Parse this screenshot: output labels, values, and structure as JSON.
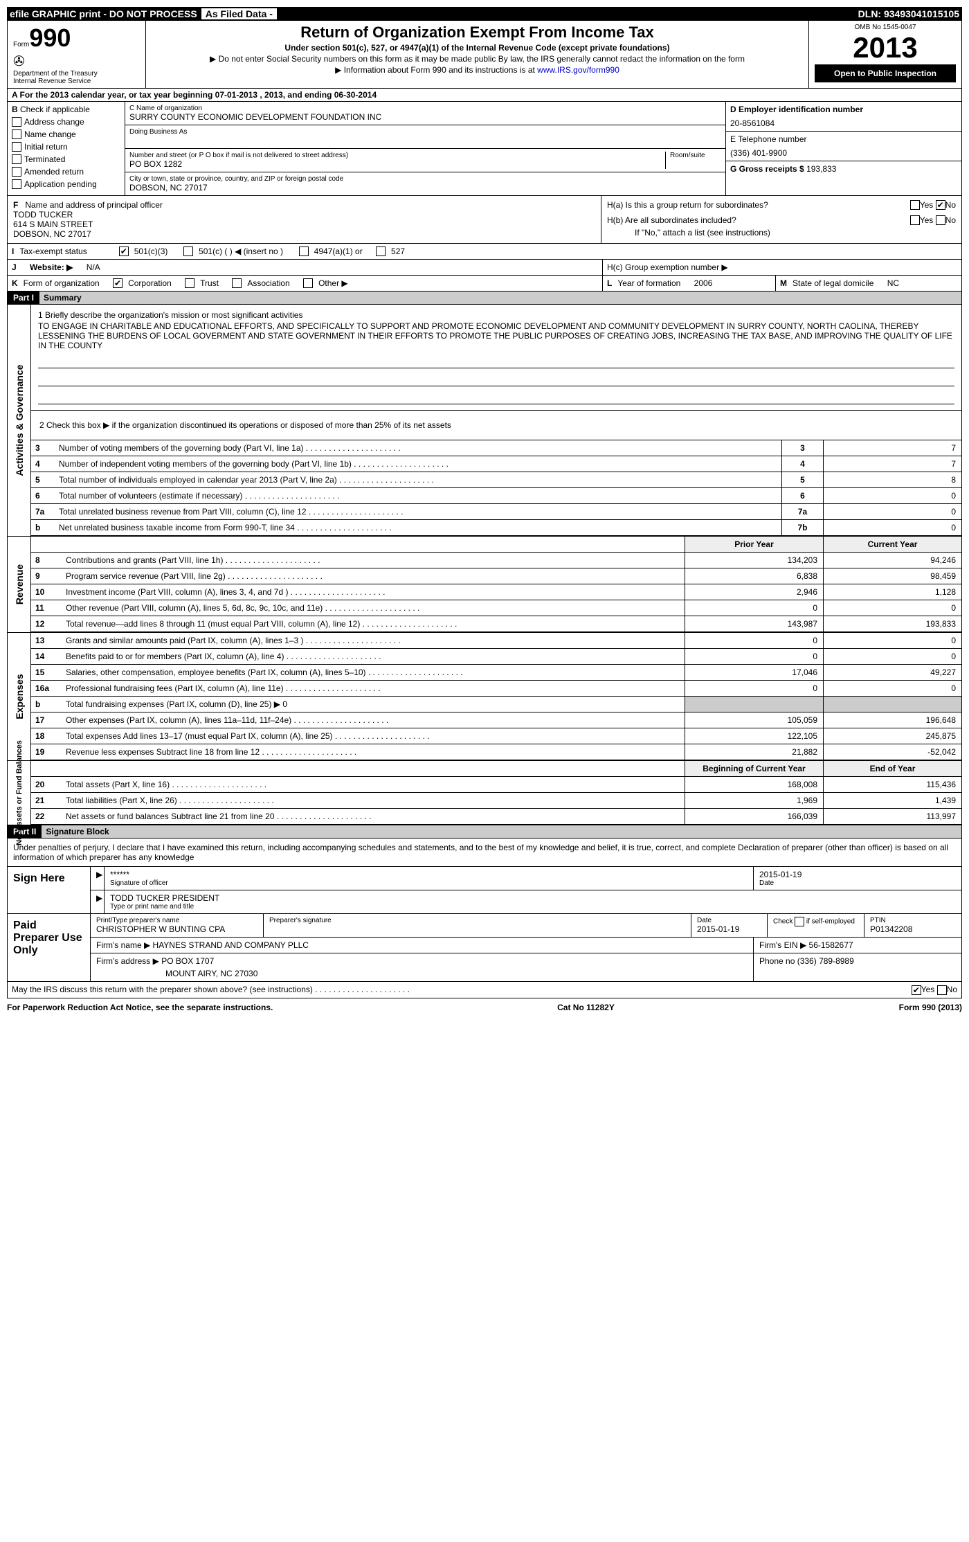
{
  "topbar": {
    "left": "efile GRAPHIC print - DO NOT PROCESS",
    "mid": "As Filed Data -",
    "dln_label": "DLN:",
    "dln": "93493041015105"
  },
  "hdr": {
    "form_label": "Form",
    "form_no": "990",
    "dept": "Department of the Treasury",
    "irs": "Internal Revenue Service",
    "title": "Return of Organization Exempt From Income Tax",
    "sub1": "Under section 501(c), 527, or 4947(a)(1) of the Internal Revenue Code (except private foundations)",
    "sub2": "▶ Do not enter Social Security numbers on this form as it may be made public  By law, the IRS generally cannot redact the information on the form",
    "sub3": "▶ Information about Form 990 and its instructions is at ",
    "link": "www.IRS.gov/form990",
    "omb": "OMB No  1545-0047",
    "year": "2013",
    "open": "Open to Public Inspection"
  },
  "rowA": "A  For the 2013 calendar year, or tax year beginning 07-01-2013    , 2013, and ending 06-30-2014",
  "b": {
    "label": "B",
    "check_if": "Check if applicable",
    "items": [
      "Address change",
      "Name change",
      "Initial return",
      "Terminated",
      "Amended return",
      "Application pending"
    ]
  },
  "c": {
    "name_label": "C Name of organization",
    "name": "SURRY COUNTY ECONOMIC DEVELOPMENT FOUNDATION INC",
    "dba_label": "Doing Business As",
    "addr_label": "Number and street (or P O  box if mail is not delivered to street address)",
    "room": "Room/suite",
    "addr": "PO BOX 1282",
    "city_label": "City or town, state or province, country, and ZIP or foreign postal code",
    "city": "DOBSON, NC  27017"
  },
  "d": {
    "label": "D  Employer identification number",
    "val": "20-8561084"
  },
  "e": {
    "label": "E  Telephone number",
    "val": "(336) 401-9900"
  },
  "g": {
    "label": "G  Gross receipts $",
    "val": "193,833"
  },
  "f": {
    "label": "F",
    "sub": "Name and address of principal officer",
    "name": "TODD TUCKER",
    "l1": "614 S MAIN STREET",
    "l2": "DOBSON, NC  27017"
  },
  "h": {
    "a": "H(a)  Is this a group return for subordinates?",
    "a_yes": "Yes",
    "a_no": "No",
    "b": "H(b)  Are all subordinates included?",
    "b_yes": "Yes",
    "b_no": "No",
    "b_note": "If \"No,\" attach a list  (see instructions)",
    "c": "H(c)   Group exemption number ▶"
  },
  "i": {
    "label": "I",
    "text": "Tax-exempt status",
    "o1": "501(c)(3)",
    "o2": "501(c) (   ) ◀ (insert no )",
    "o3": "4947(a)(1) or",
    "o4": "527"
  },
  "j": {
    "label": "J",
    "text": "Website: ▶",
    "val": "N/A"
  },
  "k": {
    "label": "K",
    "text": "Form of organization",
    "o1": "Corporation",
    "o2": "Trust",
    "o3": "Association",
    "o4": "Other ▶"
  },
  "l": {
    "label": "L",
    "text": "Year of formation",
    "val": "2006"
  },
  "m": {
    "label": "M",
    "text": "State of legal domicile",
    "val": "NC"
  },
  "part1": {
    "label": "Part I",
    "title": "Summary"
  },
  "strip_ag": "Activities & Governance",
  "mission_q": "1    Briefly describe the organization's mission or most significant activities",
  "mission": "TO ENGAGE IN CHARITABLE AND EDUCATIONAL EFFORTS, AND SPECIFICALLY TO SUPPORT AND PROMOTE ECONOMIC DEVELOPMENT AND COMMUNITY DEVELOPMENT IN SURRY COUNTY, NORTH CAOLINA, THEREBY LESSENING THE BURDENS OF LOCAL GOVERMENT AND STATE GOVERNMENT IN THEIR EFFORTS TO PROMOTE THE PUBLIC PURPOSES OF CREATING JOBS, INCREASING THE TAX BASE, AND IMPROVING THE QUALITY OF LIFE IN THE COUNTY",
  "q2": "2    Check this box ▶     if the organization discontinued its operations or disposed of more than 25% of its net assets",
  "ag_rows": [
    {
      "n": "3",
      "t": "Number of voting members of the governing body (Part VI, line 1a)",
      "box": "3",
      "val": "7"
    },
    {
      "n": "4",
      "t": "Number of independent voting members of the governing body (Part VI, line 1b)",
      "box": "4",
      "val": "7"
    },
    {
      "n": "5",
      "t": "Total number of individuals employed in calendar year 2013 (Part V, line 2a)",
      "box": "5",
      "val": "8"
    },
    {
      "n": "6",
      "t": "Total number of volunteers (estimate if necessary)",
      "box": "6",
      "val": "0"
    },
    {
      "n": "7a",
      "t": "Total unrelated business revenue from Part VIII, column (C), line 12",
      "box": "7a",
      "val": "0"
    },
    {
      "n": "b",
      "t": "Net unrelated business taxable income from Form 990-T, line 34",
      "box": "7b",
      "val": "0"
    }
  ],
  "col_hdr": {
    "py": "Prior Year",
    "cy": "Current Year"
  },
  "strip_rev": "Revenue",
  "rev_rows": [
    {
      "n": "8",
      "t": "Contributions and grants (Part VIII, line 1h)",
      "py": "134,203",
      "cy": "94,246"
    },
    {
      "n": "9",
      "t": "Program service revenue (Part VIII, line 2g)",
      "py": "6,838",
      "cy": "98,459"
    },
    {
      "n": "10",
      "t": "Investment income (Part VIII, column (A), lines 3, 4, and 7d )",
      "py": "2,946",
      "cy": "1,128"
    },
    {
      "n": "11",
      "t": "Other revenue (Part VIII, column (A), lines 5, 6d, 8c, 9c, 10c, and 11e)",
      "py": "0",
      "cy": "0"
    },
    {
      "n": "12",
      "t": "Total revenue—add lines 8 through 11 (must equal Part VIII, column (A), line 12)",
      "py": "143,987",
      "cy": "193,833"
    }
  ],
  "strip_exp": "Expenses",
  "exp_rows": [
    {
      "n": "13",
      "t": "Grants and similar amounts paid (Part IX, column (A), lines 1–3 )",
      "py": "0",
      "cy": "0"
    },
    {
      "n": "14",
      "t": "Benefits paid to or for members (Part IX, column (A), line 4)",
      "py": "0",
      "cy": "0"
    },
    {
      "n": "15",
      "t": "Salaries, other compensation, employee benefits (Part IX, column (A), lines 5–10)",
      "py": "17,046",
      "cy": "49,227"
    },
    {
      "n": "16a",
      "t": "Professional fundraising fees (Part IX, column (A), line 11e)",
      "py": "0",
      "cy": "0"
    },
    {
      "n": "b",
      "t": "Total fundraising expenses (Part IX, column (D), line 25) ▶ 0",
      "py": "",
      "cy": ""
    },
    {
      "n": "17",
      "t": "Other expenses (Part IX, column (A), lines 11a–11d, 11f–24e)",
      "py": "105,059",
      "cy": "196,648"
    },
    {
      "n": "18",
      "t": "Total expenses  Add lines 13–17 (must equal Part IX, column (A), line 25)",
      "py": "122,105",
      "cy": "245,875"
    },
    {
      "n": "19",
      "t": "Revenue less expenses  Subtract line 18 from line 12",
      "py": "21,882",
      "cy": "-52,042"
    }
  ],
  "col_hdr2": {
    "py": "Beginning of Current Year",
    "cy": "End of Year"
  },
  "strip_na": "Net Assets or Fund Balances",
  "na_rows": [
    {
      "n": "20",
      "t": "Total assets (Part X, line 16)",
      "py": "168,008",
      "cy": "115,436"
    },
    {
      "n": "21",
      "t": "Total liabilities (Part X, line 26)",
      "py": "1,969",
      "cy": "1,439"
    },
    {
      "n": "22",
      "t": "Net assets or fund balances  Subtract line 21 from line 20",
      "py": "166,039",
      "cy": "113,997"
    }
  ],
  "part2": {
    "label": "Part II",
    "title": "Signature Block"
  },
  "sig_decl": "Under penalties of perjury, I declare that I have examined this return, including accompanying schedules and statements, and to the best of my knowledge and belief, it is true, correct, and complete  Declaration of preparer (other than officer) is based on all information of which preparer has any knowledge",
  "sign": {
    "left": "Sign Here",
    "stars": "******",
    "date": "2015-01-19",
    "sig_label": "Signature of officer",
    "date_label": "Date",
    "name": "TODD TUCKER  PRESIDENT",
    "name_label": "Type or print name and title"
  },
  "paid": {
    "left": "Paid Preparer Use Only",
    "r1": {
      "a": "Print/Type preparer's name",
      "an": "CHRISTOPHER W BUNTING CPA",
      "b": "Preparer's signature",
      "c": "Date",
      "cn": "2015-01-19",
      "d": "Check        if self-employed",
      "e": "PTIN",
      "en": "P01342208"
    },
    "r2": {
      "a": "Firm's name    ▶ HAYNES STRAND AND COMPANY PLLC",
      "b": "Firm's EIN ▶ 56-1582677"
    },
    "r3": {
      "a": "Firm's address ▶ PO BOX 1707",
      "b": "Phone no  (336) 789-8989"
    },
    "r3b": "MOUNT AIRY, NC  27030"
  },
  "discuss": "May the IRS discuss this return with the preparer shown above? (see instructions)",
  "footer": {
    "l": "For Paperwork Reduction Act Notice, see the separate instructions.",
    "m": "Cat No 11282Y",
    "r": "Form 990 (2013)"
  }
}
